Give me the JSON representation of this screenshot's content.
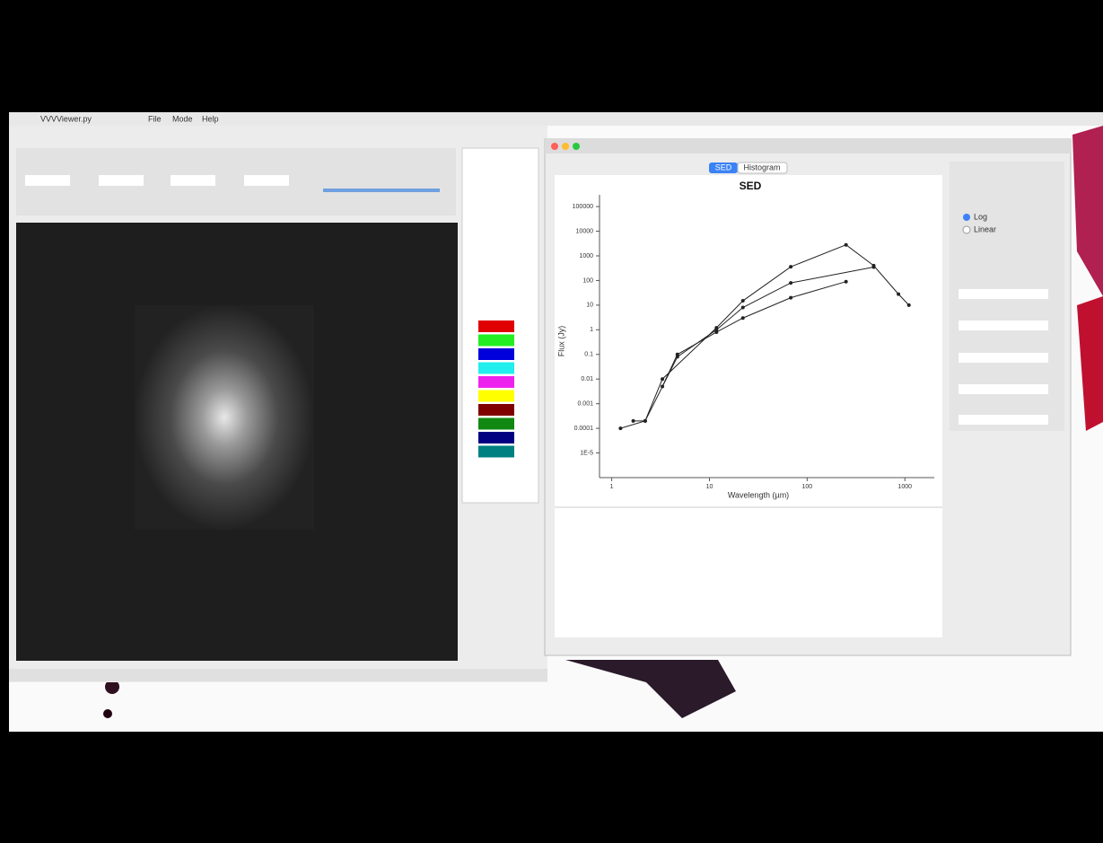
{
  "app": {
    "title": "VVVViewer.py",
    "menu": [
      "File",
      "Mode",
      "Help"
    ]
  },
  "sed_window": {
    "tabs": [
      "SED",
      "Histogram"
    ],
    "options": [
      "Log",
      "Linear"
    ]
  },
  "chart_data": {
    "type": "line",
    "title": "SED",
    "x_label": "Wavelength (µm)",
    "y_label": "Flux (Jy)",
    "xlog": true,
    "ylog": true,
    "grid": false,
    "color": "#222222",
    "xlim": [
      0.75,
      2000
    ],
    "ylim": [
      1e-06,
      300000
    ],
    "xticks": [
      1,
      10,
      100,
      1000
    ],
    "yticks": [
      {
        "value": 1e-05,
        "label": "1E-5"
      },
      0.0001,
      0.001,
      0.01,
      0.1,
      1,
      10,
      100,
      1000,
      10000,
      100000
    ],
    "series": [
      {
        "color": "#222222",
        "x": [
          1.23,
          2.2,
          3.3,
          11.8,
          22,
          68,
          250,
          480,
          860,
          1100
        ],
        "values": [
          0.0001,
          0.0002,
          0.01,
          1.2,
          15,
          360,
          2800,
          400,
          28,
          10
        ]
      },
      {
        "color": "#222222",
        "x": [
          1.66,
          2.2,
          4.7,
          11.8,
          22,
          68,
          480
        ],
        "values": [
          0.0002,
          0.0002,
          0.08,
          1,
          8,
          80,
          350
        ]
      },
      {
        "color": "#222222",
        "x": [
          3.3,
          4.7,
          11.8,
          22,
          68,
          250
        ],
        "values": [
          0.005,
          0.1,
          0.8,
          3,
          20,
          90
        ]
      }
    ]
  }
}
